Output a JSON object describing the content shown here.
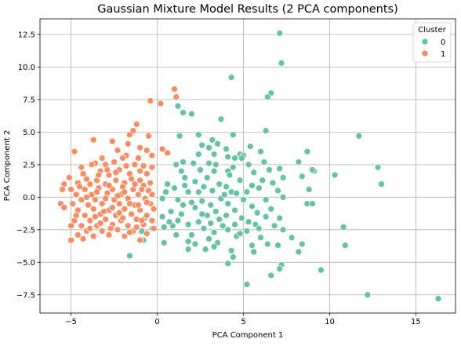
{
  "chart_data": {
    "type": "scatter",
    "title": "Gaussian Mixture Model Results (2 PCA components)",
    "xlabel": "PCA Component 1",
    "ylabel": "PCA Component 2",
    "xlim": [
      -6.8,
      17.3
    ],
    "ylim": [
      -8.9,
      13.7
    ],
    "xticks": [
      -5,
      0,
      5,
      10,
      15
    ],
    "yticks": [
      -7.5,
      -5.0,
      -2.5,
      0.0,
      2.5,
      5.0,
      7.5,
      10.0,
      12.5
    ],
    "grid": true,
    "legend": {
      "title": "Cluster",
      "placement": "top-right",
      "entries": [
        "0",
        "1"
      ]
    },
    "colors": {
      "0": "#66c2a5",
      "1": "#fc8d62"
    },
    "series": [
      {
        "name": "0",
        "color": "#66c2a5",
        "points": [
          [
            7.1,
            12.6
          ],
          [
            7.2,
            10.3
          ],
          [
            4.3,
            9.2
          ],
          [
            6.6,
            8.0
          ],
          [
            6.4,
            7.7
          ],
          [
            1.2,
            7.0
          ],
          [
            1.5,
            6.5
          ],
          [
            2.0,
            6.4
          ],
          [
            3.7,
            6.0
          ],
          [
            6.3,
            5.1
          ],
          [
            4.4,
            4.8
          ],
          [
            11.7,
            4.7
          ],
          [
            1.3,
            4.7
          ],
          [
            2.4,
            4.8
          ],
          [
            3.2,
            4.4
          ],
          [
            2.6,
            4.0
          ],
          [
            3.5,
            4.1
          ],
          [
            3.0,
            3.8
          ],
          [
            4.0,
            3.7
          ],
          [
            5.4,
            3.9
          ],
          [
            8.7,
            3.5
          ],
          [
            6.0,
            3.5
          ],
          [
            4.8,
            3.3
          ],
          [
            3.3,
            3.3
          ],
          [
            5.0,
            3.2
          ],
          [
            4.9,
            3.0
          ],
          [
            4.5,
            3.0
          ],
          [
            4.1,
            3.1
          ],
          [
            2.4,
            3.3
          ],
          [
            2.1,
            2.6
          ],
          [
            1.5,
            2.7
          ],
          [
            8.2,
            2.7
          ],
          [
            6.2,
            2.7
          ],
          [
            5.3,
            2.5
          ],
          [
            3.4,
            2.5
          ],
          [
            1.1,
            2.5
          ],
          [
            1.4,
            2.0
          ],
          [
            3.0,
            2.6
          ],
          [
            4.4,
            2.3
          ],
          [
            12.8,
            2.3
          ],
          [
            7.1,
            2.2
          ],
          [
            6.5,
            2.1
          ],
          [
            9.1,
            2.0
          ],
          [
            9.0,
            2.1
          ],
          [
            2.5,
            2.1
          ],
          [
            4.1,
            2.0
          ],
          [
            3.3,
            2.0
          ],
          [
            5.6,
            1.9
          ],
          [
            10.3,
            1.7
          ],
          [
            8.4,
            1.6
          ],
          [
            7.3,
            1.5
          ],
          [
            1.6,
            1.5
          ],
          [
            2.2,
            1.2
          ],
          [
            4.8,
            1.3
          ],
          [
            6.1,
            1.3
          ],
          [
            13.0,
            1.0
          ],
          [
            5.5,
            0.9
          ],
          [
            3.6,
            1.0
          ],
          [
            4.0,
            0.8
          ],
          [
            0.6,
            1.0
          ],
          [
            2.7,
            0.8
          ],
          [
            1.0,
            0.7
          ],
          [
            3.2,
            0.5
          ],
          [
            5.9,
            0.7
          ],
          [
            7.0,
            0.5
          ],
          [
            4.3,
            0.4
          ],
          [
            8.8,
            0.6
          ],
          [
            0.5,
            0.4
          ],
          [
            1.8,
            0.4
          ],
          [
            2.4,
            0.4
          ],
          [
            4.6,
            0.3
          ],
          [
            7.3,
            0.0
          ],
          [
            3.7,
            -0.1
          ],
          [
            5.0,
            -0.2
          ],
          [
            0.3,
            -0.1
          ],
          [
            1.2,
            -0.2
          ],
          [
            2.6,
            -0.3
          ],
          [
            6.3,
            -0.2
          ],
          [
            8.7,
            -0.5
          ],
          [
            9.0,
            -0.5
          ],
          [
            4.1,
            -0.5
          ],
          [
            3.1,
            -0.6
          ],
          [
            1.5,
            -0.6
          ],
          [
            5.5,
            -0.7
          ],
          [
            2.2,
            -0.8
          ],
          [
            6.6,
            -0.9
          ],
          [
            4.5,
            -1.0
          ],
          [
            0.8,
            -1.1
          ],
          [
            3.4,
            -1.1
          ],
          [
            5.8,
            -1.2
          ],
          [
            1.4,
            -1.3
          ],
          [
            2.9,
            -1.4
          ],
          [
            4.0,
            -1.4
          ],
          [
            0.3,
            -1.5
          ],
          [
            6.3,
            -1.5
          ],
          [
            7.1,
            -1.6
          ],
          [
            4.9,
            -1.6
          ],
          [
            3.6,
            -1.7
          ],
          [
            1.2,
            -1.8
          ],
          [
            2.4,
            -1.9
          ],
          [
            -0.7,
            -1.6
          ],
          [
            5.3,
            -1.9
          ],
          [
            5.7,
            -2.1
          ],
          [
            4.5,
            -2.1
          ],
          [
            3.1,
            -2.0
          ],
          [
            6.8,
            -2.2
          ],
          [
            1.8,
            -2.1
          ],
          [
            0.9,
            -2.2
          ],
          [
            0.4,
            -2.3
          ],
          [
            2.7,
            -2.4
          ],
          [
            -0.3,
            -2.4
          ],
          [
            4.1,
            -2.5
          ],
          [
            7.3,
            -2.5
          ],
          [
            5.2,
            -2.6
          ],
          [
            10.8,
            -2.3
          ],
          [
            3.3,
            -2.7
          ],
          [
            2.0,
            -2.9
          ],
          [
            -0.9,
            -2.6
          ],
          [
            4.6,
            -3.0
          ],
          [
            6.0,
            -3.1
          ],
          [
            7.8,
            -3.1
          ],
          [
            -0.8,
            -3.3
          ],
          [
            0.4,
            -3.5
          ],
          [
            1.8,
            -3.4
          ],
          [
            3.5,
            -3.5
          ],
          [
            2.2,
            -3.6
          ],
          [
            5.5,
            -3.7
          ],
          [
            6.4,
            -3.6
          ],
          [
            7.0,
            -3.7
          ],
          [
            8.4,
            -3.6
          ],
          [
            10.9,
            -3.7
          ],
          [
            1.8,
            -4.0
          ],
          [
            2.8,
            -4.0
          ],
          [
            3.3,
            -3.8
          ],
          [
            4.3,
            -4.1
          ],
          [
            8.2,
            -4.2
          ],
          [
            5.6,
            -4.2
          ],
          [
            -1.6,
            -4.5
          ],
          [
            4.4,
            -4.6
          ],
          [
            4.1,
            -5.1
          ],
          [
            7.2,
            -5.2
          ],
          [
            7.1,
            -5.5
          ],
          [
            9.5,
            -5.6
          ],
          [
            6.6,
            -6.0
          ],
          [
            5.2,
            -6.7
          ],
          [
            12.2,
            -7.5
          ],
          [
            16.3,
            -7.8
          ],
          [
            0.7,
            -1.9
          ],
          [
            2.6,
            -1.3
          ],
          [
            3.8,
            -2.2
          ],
          [
            1.6,
            0.9
          ],
          [
            2.9,
            1.5
          ],
          [
            4.2,
            1.7
          ],
          [
            5.2,
            0.4
          ],
          [
            6.7,
            1.1
          ],
          [
            3.0,
            -3.2
          ],
          [
            2.0,
            -0.4
          ],
          [
            4.8,
            -2.8
          ],
          [
            1.1,
            -2.9
          ],
          [
            5.9,
            -2.4
          ],
          [
            3.9,
            0.2
          ]
        ]
      },
      {
        "name": "1",
        "color": "#fc8d62",
        "points": [
          [
            1.0,
            8.3
          ],
          [
            1.1,
            7.7
          ],
          [
            -0.4,
            7.4
          ],
          [
            0.2,
            7.2
          ],
          [
            -1.2,
            5.6
          ],
          [
            -1.4,
            5.1
          ],
          [
            -1.6,
            4.8
          ],
          [
            -0.5,
            4.7
          ],
          [
            -2.6,
            4.3
          ],
          [
            -3.7,
            4.4
          ],
          [
            -1.7,
            4.1
          ],
          [
            -1.0,
            3.8
          ],
          [
            -0.6,
            3.6
          ],
          [
            0.3,
            3.7
          ],
          [
            0.6,
            3.4
          ],
          [
            -4.8,
            3.5
          ],
          [
            -2.3,
            3.6
          ],
          [
            -1.8,
            3.2
          ],
          [
            -3.2,
            3.0
          ],
          [
            -1.1,
            3.0
          ],
          [
            -0.3,
            3.2
          ],
          [
            -2.5,
            2.7
          ],
          [
            -3.0,
            2.5
          ],
          [
            -3.6,
            2.6
          ],
          [
            -3.8,
            2.5
          ],
          [
            -4.4,
            2.3
          ],
          [
            -1.3,
            2.5
          ],
          [
            -0.8,
            2.4
          ],
          [
            -0.3,
            2.3
          ],
          [
            -5.1,
            1.5
          ],
          [
            -3.3,
            2.0
          ],
          [
            -2.2,
            2.1
          ],
          [
            -1.6,
            1.8
          ],
          [
            -0.6,
            1.8
          ],
          [
            -2.8,
            1.7
          ],
          [
            -4.1,
            1.4
          ],
          [
            -3.5,
            1.3
          ],
          [
            -2.4,
            1.3
          ],
          [
            -1.0,
            1.3
          ],
          [
            -5.4,
            1.0
          ],
          [
            -4.6,
            1.1
          ],
          [
            -3.9,
            1.0
          ],
          [
            -3.0,
            1.0
          ],
          [
            -1.9,
            1.1
          ],
          [
            -0.8,
            0.9
          ],
          [
            -5.5,
            0.6
          ],
          [
            -5.0,
            0.6
          ],
          [
            -4.2,
            0.6
          ],
          [
            -3.4,
            0.7
          ],
          [
            -2.6,
            0.6
          ],
          [
            -1.4,
            0.6
          ],
          [
            -0.5,
            0.5
          ],
          [
            -4.7,
            0.2
          ],
          [
            -3.8,
            0.2
          ],
          [
            -2.9,
            0.3
          ],
          [
            -2.1,
            0.2
          ],
          [
            -1.1,
            0.2
          ],
          [
            -0.3,
            0.2
          ],
          [
            -4.4,
            -0.2
          ],
          [
            -3.6,
            -0.2
          ],
          [
            -2.5,
            -0.2
          ],
          [
            -1.7,
            -0.1
          ],
          [
            -0.7,
            -0.1
          ],
          [
            -5.6,
            -0.5
          ],
          [
            -5.4,
            -0.8
          ],
          [
            -4.9,
            -0.5
          ],
          [
            -4.0,
            -0.6
          ],
          [
            -3.2,
            -0.5
          ],
          [
            -2.2,
            -0.5
          ],
          [
            -1.3,
            -0.6
          ],
          [
            -0.4,
            -0.5
          ],
          [
            -4.6,
            -1.0
          ],
          [
            -3.7,
            -0.9
          ],
          [
            -2.8,
            -1.0
          ],
          [
            -1.9,
            -0.9
          ],
          [
            -1.0,
            -1.0
          ],
          [
            -0.2,
            -0.9
          ],
          [
            -4.2,
            -1.4
          ],
          [
            -3.3,
            -1.3
          ],
          [
            -2.4,
            -1.4
          ],
          [
            -1.5,
            -1.3
          ],
          [
            -0.6,
            -1.4
          ],
          [
            -4.8,
            -1.8
          ],
          [
            -3.9,
            -1.8
          ],
          [
            -3.0,
            -1.7
          ],
          [
            -2.1,
            -1.8
          ],
          [
            -1.2,
            -1.7
          ],
          [
            -0.3,
            -1.8
          ],
          [
            -5.0,
            -2.2
          ],
          [
            -4.4,
            -2.2
          ],
          [
            -3.5,
            -2.2
          ],
          [
            -2.6,
            -2.1
          ],
          [
            -1.7,
            -2.2
          ],
          [
            -0.8,
            -2.1
          ],
          [
            -4.1,
            -2.6
          ],
          [
            -3.2,
            -2.6
          ],
          [
            -2.3,
            -2.5
          ],
          [
            -1.4,
            -2.6
          ],
          [
            -0.6,
            -2.8
          ],
          [
            -4.6,
            -2.9
          ],
          [
            -3.7,
            -3.0
          ],
          [
            -2.8,
            -2.9
          ],
          [
            -1.9,
            -3.0
          ],
          [
            -5.0,
            -3.3
          ],
          [
            -4.3,
            -3.2
          ],
          [
            -1.0,
            -3.3
          ],
          [
            -3.0,
            -0.1
          ],
          [
            -2.0,
            0.8
          ],
          [
            -1.6,
            -0.5
          ],
          [
            -2.4,
            1.9
          ],
          [
            -3.6,
            -1.5
          ],
          [
            -4.5,
            0.8
          ],
          [
            -1.8,
            2.4
          ],
          [
            -2.7,
            -2.4
          ],
          [
            -0.9,
            0.6
          ],
          [
            -3.4,
            1.7
          ],
          [
            -2.0,
            -1.6
          ],
          [
            -1.2,
            -2.3
          ],
          [
            -3.9,
            -2.4
          ],
          [
            -4.7,
            -1.4
          ],
          [
            -0.2,
            -2.4
          ],
          [
            -2.9,
            2.1
          ],
          [
            -1.5,
            1.4
          ],
          [
            -3.1,
            -1.1
          ],
          [
            -2.3,
            0.1
          ],
          [
            -1.1,
            -0.6
          ],
          [
            -4.1,
            0.0
          ],
          [
            -0.4,
            1.1
          ],
          [
            -2.6,
            -0.8
          ],
          [
            -1.9,
            0.4
          ],
          [
            -3.5,
            0.4
          ],
          [
            -2.2,
            -1.2
          ],
          [
            -1.3,
            1.0
          ],
          [
            -4.3,
            1.8
          ],
          [
            -0.9,
            -1.8
          ],
          [
            -2.8,
            0.9
          ],
          [
            -1.6,
            -2.7
          ],
          [
            -3.3,
            -2.0
          ],
          [
            -2.0,
            3.0
          ],
          [
            -1.0,
            2.0
          ],
          [
            -0.6,
            -0.4
          ]
        ]
      }
    ]
  }
}
